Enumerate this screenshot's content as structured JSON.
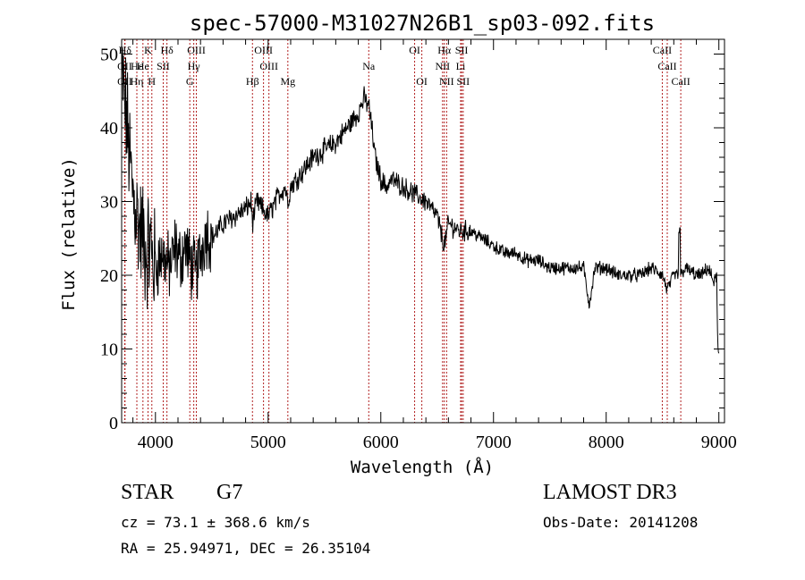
{
  "chart_data": {
    "type": "line",
    "title": "spec-57000-M31027N26B1_sp03-092.fits",
    "xlabel": "Wavelength (Å)",
    "ylabel": "Flux (relative)",
    "xlim": [
      3700,
      9050
    ],
    "ylim": [
      0,
      52
    ],
    "xticks": [
      4000,
      5000,
      6000,
      7000,
      8000,
      9000
    ],
    "yticks": [
      0,
      10,
      20,
      30,
      40,
      50
    ],
    "spectrum_anchors": {
      "x": [
        3700,
        3705,
        3720,
        3740,
        3760,
        3780,
        3800,
        3830,
        3860,
        3890,
        3920,
        3950,
        3980,
        4000,
        4030,
        4060,
        4090,
        4120,
        4150,
        4180,
        4210,
        4240,
        4270,
        4300,
        4330,
        4360,
        4400,
        4450,
        4500,
        4600,
        4700,
        4800,
        4850,
        4861,
        4900,
        4950,
        5000,
        5100,
        5150,
        5175,
        5200,
        5300,
        5400,
        5500,
        5600,
        5700,
        5800,
        5850,
        5893,
        5920,
        5950,
        6000,
        6050,
        6100,
        6200,
        6300,
        6400,
        6500,
        6563,
        6600,
        6700,
        6800,
        6900,
        7000,
        7100,
        7200,
        7300,
        7400,
        7500,
        7600,
        7700,
        7800,
        7850,
        7900,
        8000,
        8100,
        8200,
        8300,
        8400,
        8500,
        8542,
        8600,
        8662,
        8700,
        8800,
        8850,
        8900,
        8960,
        8980,
        8990,
        9000
      ],
      "y": [
        46,
        48,
        44,
        42,
        38,
        34,
        31,
        29,
        26,
        25,
        23,
        24,
        22,
        21,
        22,
        23,
        22,
        21,
        22,
        24,
        22,
        23,
        24,
        22,
        21,
        20,
        23,
        26,
        25,
        27,
        28,
        29,
        30,
        27,
        30,
        29,
        28,
        31,
        32,
        30,
        32,
        34,
        36,
        37,
        38,
        40,
        42,
        44,
        43,
        40,
        36,
        33,
        32,
        33,
        32,
        31,
        30,
        28,
        24,
        27,
        26,
        26,
        25,
        24,
        23,
        23,
        22,
        22,
        21,
        21,
        21,
        21,
        16,
        21,
        21,
        20,
        20,
        20,
        21,
        20,
        18,
        20,
        20,
        21,
        20,
        20,
        21,
        19,
        20,
        10,
        9
      ]
    },
    "spectral_lines": [
      {
        "label": "Hδ",
        "wl": 3730,
        "row": 0
      },
      {
        "label": "OII",
        "wl": 3727,
        "row": 1
      },
      {
        "label": "OII",
        "wl": 3727,
        "row": 2
      },
      {
        "label": "Hε",
        "wl": 3835,
        "row": 1
      },
      {
        "label": "Hη",
        "wl": 3835,
        "row": 2
      },
      {
        "label": "K",
        "wl": 3934,
        "row": 0
      },
      {
        "label": "He",
        "wl": 3889,
        "row": 1
      },
      {
        "label": "SII",
        "wl": 4069,
        "row": 1
      },
      {
        "label": "H",
        "wl": 3968,
        "row": 2
      },
      {
        "label": "Hδ",
        "wl": 4102,
        "row": 0
      },
      {
        "label": "OIII",
        "wl": 4363,
        "row": 0
      },
      {
        "label": "Hγ",
        "wl": 4340,
        "row": 1
      },
      {
        "label": "G",
        "wl": 4305,
        "row": 2
      },
      {
        "label": "Hβ",
        "wl": 4861,
        "row": 2
      },
      {
        "label": "OIII",
        "wl": 4959,
        "row": 0
      },
      {
        "label": "OIII",
        "wl": 5007,
        "row": 1
      },
      {
        "label": "Mg",
        "wl": 5175,
        "row": 2
      },
      {
        "label": "Na",
        "wl": 5893,
        "row": 1
      },
      {
        "label": "OI",
        "wl": 6300,
        "row": 0
      },
      {
        "label": "OI",
        "wl": 6364,
        "row": 2
      },
      {
        "label": "Hα",
        "wl": 6563,
        "row": 0
      },
      {
        "label": "NII",
        "wl": 6548,
        "row": 1
      },
      {
        "label": "NII",
        "wl": 6584,
        "row": 2
      },
      {
        "label": "SII",
        "wl": 6717,
        "row": 0
      },
      {
        "label": "Li",
        "wl": 6708,
        "row": 1
      },
      {
        "label": "SII",
        "wl": 6731,
        "row": 2
      },
      {
        "label": "CaII",
        "wl": 8498,
        "row": 0
      },
      {
        "label": "CaII",
        "wl": 8542,
        "row": 1
      },
      {
        "label": "CaII",
        "wl": 8662,
        "row": 2
      }
    ]
  },
  "info": {
    "class_label": "STAR",
    "subclass": "G7",
    "survey": "LAMOST DR3",
    "cz_text": "cz = 73.1 ± 368.6 km/s",
    "obs_date_text": "Obs-Date: 20141208",
    "coords_text": "RA =  25.94971, DEC =  26.35104"
  },
  "colors": {
    "line_marker": "#b22222",
    "spectrum": "#000000"
  }
}
